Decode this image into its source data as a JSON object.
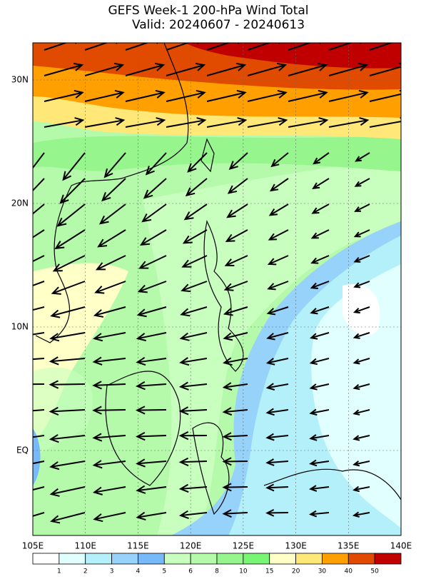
{
  "title": "GEFS Week-1 200-hPa Wind Total",
  "subtitle": "Valid: 20240607 - 20240613",
  "x_labels": [
    "105E",
    "110E",
    "115E",
    "120E",
    "125E",
    "130E",
    "135E",
    "140E"
  ],
  "y_labels": [
    "30N",
    "20N",
    "10N",
    "EQ"
  ],
  "colorbar": {
    "colors": [
      "#ffffff",
      "#e1ffff",
      "#b4f0fa",
      "#96d2fa",
      "#78b9fa",
      "#c8ffbe",
      "#b4faaa",
      "#96f58c",
      "#78f573",
      "#ffffc8",
      "#ffe878",
      "#ffa000",
      "#e14b00",
      "#c00000"
    ],
    "labels": [
      1,
      2,
      3,
      4,
      5,
      6,
      8,
      10,
      15,
      20,
      30,
      40,
      50
    ]
  }
}
